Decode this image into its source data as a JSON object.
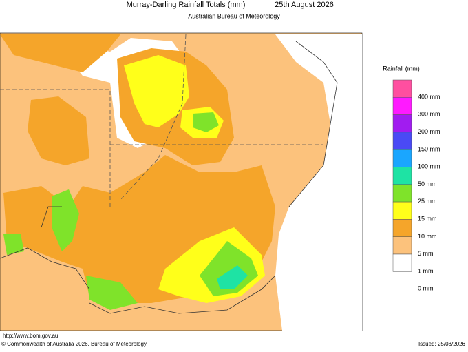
{
  "header": {
    "title": "Murray-Darling Rainfall Totals (mm)",
    "date": "25th August 2026",
    "subtitle": "Australian Bureau of Meteorology"
  },
  "legend": {
    "title": "Rainfall (mm)",
    "items": [
      {
        "label": "400 mm",
        "color": "#ff4fa0"
      },
      {
        "label": "300 mm",
        "color": "#ff1aff"
      },
      {
        "label": "200 mm",
        "color": "#a11cf0"
      },
      {
        "label": "150 mm",
        "color": "#4a4af5"
      },
      {
        "label": "100 mm",
        "color": "#1aa6ff"
      },
      {
        "label": "50 mm",
        "color": "#1ee3a4"
      },
      {
        "label": "25 mm",
        "color": "#7fe32a"
      },
      {
        "label": "15 mm",
        "color": "#ffff1a"
      },
      {
        "label": "10 mm",
        "color": "#f5a52a"
      },
      {
        "label": "5 mm",
        "color": "#fcc27c"
      },
      {
        "label": "1 mm",
        "color": "#ffffff"
      },
      {
        "label": "0 mm",
        "color": null
      }
    ]
  },
  "footer": {
    "url": "http://www.bom.gov.au",
    "copyright": "© Commonwealth of Australia 2026, Bureau of Meteorology",
    "issued": "Issued: 25/08/2026"
  }
}
